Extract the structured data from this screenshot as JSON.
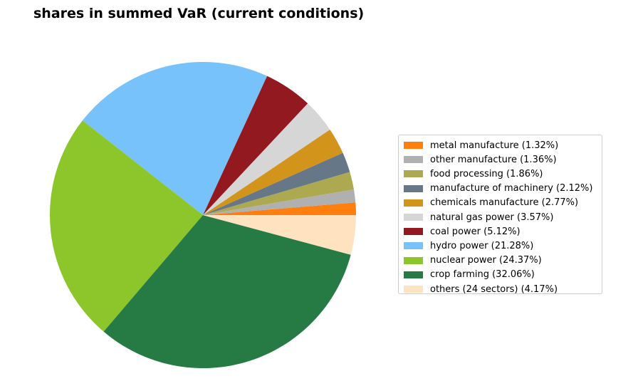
{
  "chart_data": {
    "type": "pie",
    "title": "shares in summed VaR (current conditions)",
    "slices": [
      {
        "label": "metal manufacture (1.32%)",
        "value": 1.32,
        "color": "#ff7f0e"
      },
      {
        "label": "other manufacture (1.36%)",
        "value": 1.36,
        "color": "#b0b0b0"
      },
      {
        "label": "food processing (1.86%)",
        "value": 1.86,
        "color": "#ada951"
      },
      {
        "label": "manufacture of machinery (2.12%)",
        "value": 2.12,
        "color": "#667788"
      },
      {
        "label": "chemicals manufacture (2.77%)",
        "value": 2.77,
        "color": "#d3941b"
      },
      {
        "label": "natural gas power (3.57%)",
        "value": 3.57,
        "color": "#d6d6d6"
      },
      {
        "label": "coal power (5.12%)",
        "value": 5.12,
        "color": "#921920"
      },
      {
        "label": "hydro power (21.28%)",
        "value": 21.28,
        "color": "#77c2fa"
      },
      {
        "label": "nuclear power (24.37%)",
        "value": 24.37,
        "color": "#8cc62b"
      },
      {
        "label": "crop farming (32.06%)",
        "value": 32.06,
        "color": "#267b45"
      },
      {
        "label": "others (24 sectors) (4.17%)",
        "value": 4.17,
        "color": "#ffe3c0"
      }
    ],
    "start_angle_deg": 0,
    "direction": "counterclockwise",
    "legend_position": "right"
  }
}
